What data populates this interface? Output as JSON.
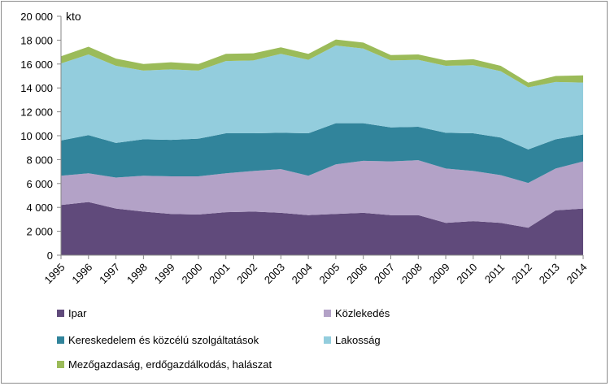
{
  "chart_data": {
    "type": "area",
    "stacked": true,
    "unit_label": "kto",
    "x": [
      "1995",
      "1996",
      "1997",
      "1998",
      "1999",
      "2000",
      "2001",
      "2002",
      "2003",
      "2004",
      "2005",
      "2006",
      "2007",
      "2008",
      "2009",
      "2010",
      "2011",
      "2012",
      "2013",
      "2014"
    ],
    "ylim": [
      0,
      20000
    ],
    "y_ticks": [
      "0",
      "2 000",
      "4 000",
      "6 000",
      "8 000",
      "10 000",
      "12 000",
      "14 000",
      "16 000",
      "18 000",
      "20 000"
    ],
    "grid": false,
    "legend_position": "bottom",
    "series": [
      {
        "name": "Ipar",
        "color": "#604a7b",
        "values": [
          4200,
          4450,
          3900,
          3650,
          3450,
          3400,
          3600,
          3650,
          3550,
          3350,
          3450,
          3550,
          3350,
          3350,
          2700,
          2850,
          2700,
          2300,
          3750,
          3900
        ]
      },
      {
        "name": "Közlekedés",
        "color": "#b3a2c7",
        "values": [
          2450,
          2400,
          2600,
          3000,
          3150,
          3200,
          3250,
          3400,
          3650,
          3300,
          4150,
          4350,
          4500,
          4600,
          4550,
          4200,
          4000,
          3750,
          3500,
          3950
        ]
      },
      {
        "name": "Kereskedelem és közcélú szolgáltatások",
        "color": "#31849b",
        "values": [
          2950,
          3200,
          2900,
          3050,
          3050,
          3150,
          3350,
          3150,
          3050,
          3550,
          3450,
          3150,
          2850,
          2800,
          3000,
          3150,
          3150,
          2800,
          2450,
          2250
        ]
      },
      {
        "name": "Lakosság",
        "color": "#93cddd",
        "values": [
          6450,
          6750,
          6450,
          5750,
          5900,
          5700,
          6050,
          6100,
          6600,
          6150,
          6500,
          6250,
          5600,
          5600,
          5600,
          5700,
          5550,
          5200,
          4800,
          4350
        ]
      },
      {
        "name": "Mezőgazdaság, erdőgazdálkodás, halászat",
        "color": "#9bbb59",
        "values": [
          600,
          650,
          600,
          550,
          600,
          550,
          600,
          600,
          550,
          500,
          500,
          500,
          450,
          450,
          450,
          500,
          450,
          400,
          500,
          600
        ]
      }
    ]
  }
}
